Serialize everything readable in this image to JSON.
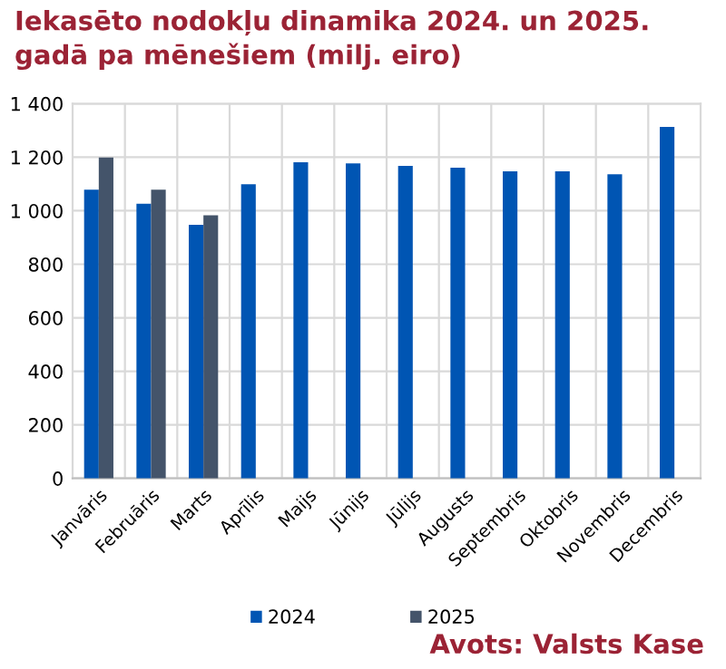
{
  "chart_data": {
    "type": "bar",
    "title": "Iekasēto nodokļu dinamika 2024. un 2025.\ngadā pa mēnešiem (milj. eiro)",
    "categories": [
      "Janvāris",
      "Februāris",
      "Marts",
      "Aprīlis",
      "Maijs",
      "Jūnijs",
      "Jūlijs",
      "Augusts",
      "Septembris",
      "Oktobris",
      "Novembris",
      "Decembris"
    ],
    "series": [
      {
        "name": "2024",
        "color": "#0055b3",
        "values": [
          1079,
          1026,
          947,
          1099,
          1181,
          1177,
          1168,
          1161,
          1147,
          1147,
          1136,
          1313
        ]
      },
      {
        "name": "2025",
        "color": "#44546a",
        "values": [
          1199,
          1079,
          983,
          null,
          null,
          null,
          null,
          null,
          null,
          null,
          null,
          null
        ]
      }
    ],
    "ylim": [
      0,
      1400
    ],
    "yticks": [
      {
        "value": 0,
        "label": "0"
      },
      {
        "value": 200,
        "label": "200"
      },
      {
        "value": 400,
        "label": "400"
      },
      {
        "value": 600,
        "label": "600"
      },
      {
        "value": 800,
        "label": "800"
      },
      {
        "value": 1000,
        "label": "1 000"
      },
      {
        "value": 1200,
        "label": "1 200"
      },
      {
        "value": 1400,
        "label": "1 400"
      }
    ],
    "grid": true,
    "legend": "bottom",
    "annotations": [
      "Avots: Valsts Kase"
    ]
  }
}
